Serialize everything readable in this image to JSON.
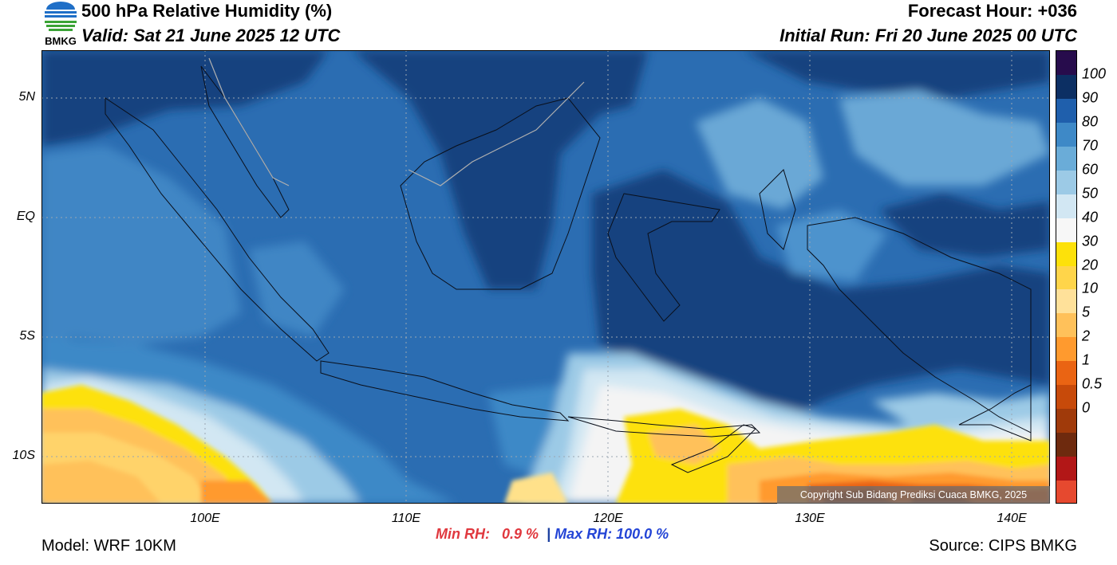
{
  "header": {
    "title": "500 hPa Relative Humidity (%)",
    "valid": "Valid: Sat 21 June 2025 12 UTC",
    "forecast_hour": "Forecast Hour: +036",
    "initial_run": "Initial Run: Fri 20 June 2025 00 UTC"
  },
  "logo": {
    "text": "BMKG",
    "icon": "bmkg-logo-icon"
  },
  "map": {
    "lat_labels": [
      "5N",
      "EQ",
      "5S",
      "10S"
    ],
    "lon_labels": [
      "100E",
      "110E",
      "120E",
      "130E",
      "140E"
    ],
    "lat_values": [
      5,
      0,
      -5,
      -10
    ],
    "lon_values": [
      100,
      110,
      120,
      130,
      140
    ],
    "lat_range": [
      -12,
      7
    ],
    "lon_range": [
      92,
      142
    ],
    "grid": true
  },
  "colorbar": {
    "labels": [
      "100",
      "90",
      "80",
      "70",
      "60",
      "50",
      "40",
      "30",
      "20",
      "10",
      "5",
      "2",
      "1",
      "0.5",
      "0"
    ],
    "colors": [
      "#270c4c",
      "#0c2f63",
      "#1f5fac",
      "#3e89c7",
      "#6aacd8",
      "#9ccae6",
      "#d2e7f3",
      "#f7f7f7",
      "#fde10a",
      "#ffd54a",
      "#ffe19a",
      "#ffc15a",
      "#ff9a2e",
      "#ea6413",
      "#c74a0a",
      "#a03a0a",
      "#6e2a0e",
      "#b21717",
      "#e6492f"
    ]
  },
  "stats": {
    "min_label": "Min RH:",
    "min_value": "0.9 %",
    "separator": "|",
    "max_label": "Max RH:",
    "max_value": "100.0 %"
  },
  "footer": {
    "model": "Model: WRF 10KM",
    "source": "Source: CIPS BMKG",
    "copyright": "Copyright Sub Bidang Prediksi Cuaca BMKG, 2025"
  }
}
